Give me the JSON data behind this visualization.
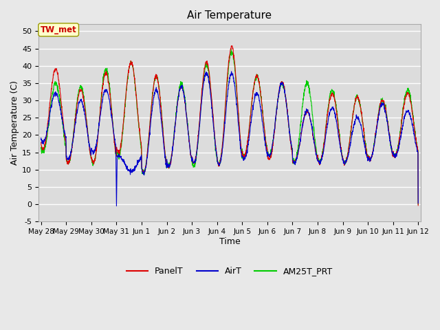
{
  "title": "Air Temperature",
  "xlabel": "Time",
  "ylabel": "Air Temperature (C)",
  "ylim": [
    -5,
    52
  ],
  "yticks": [
    -5,
    0,
    5,
    10,
    15,
    20,
    25,
    30,
    35,
    40,
    45,
    50
  ],
  "fig_bg": "#e8e8e8",
  "plot_bg": "#dcdcdc",
  "grid_color": "#ffffff",
  "line_colors": {
    "PanelT": "#dd0000",
    "AirT": "#0000cc",
    "AM25T_PRT": "#00cc00"
  },
  "annotation_text": "TW_met",
  "annotation_bg": "#ffffcc",
  "annotation_fg": "#cc0000",
  "annotation_edge": "#999900",
  "tick_labels": [
    "May 28",
    "May 29",
    "May 30",
    "May 31",
    "Jun 1",
    "Jun 2",
    "Jun 3",
    "Jun 4",
    "Jun 5",
    "Jun 6",
    "Jun 7",
    "Jun 8",
    "Jun 9",
    "Jun 10",
    "Jun 11",
    "Jun 12"
  ],
  "tick_positions": [
    0,
    1,
    2,
    3,
    4,
    5,
    6,
    7,
    8,
    9,
    10,
    11,
    12,
    13,
    14,
    15
  ]
}
